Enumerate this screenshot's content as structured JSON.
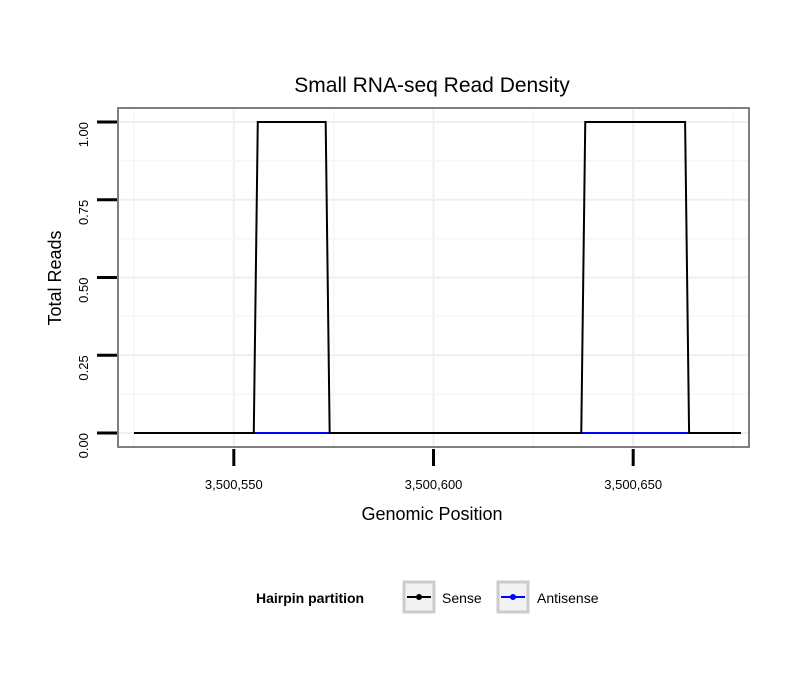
{
  "chart_data": {
    "type": "line",
    "title": "Small RNA-seq Read Density",
    "xlabel": "Genomic Position",
    "ylabel": "Total Reads",
    "xlim": [
      3500521,
      3500679
    ],
    "ylim": [
      -0.045,
      1.045
    ],
    "x_ticks": [
      3500550,
      3500600,
      3500650
    ],
    "x_tick_labels": [
      "3,500,550",
      "3,500,600",
      "3,500,650"
    ],
    "y_ticks": [
      0,
      0.25,
      0.5,
      0.75,
      1
    ],
    "y_tick_labels": [
      "0.00",
      "0.25",
      "0.50",
      "0.75",
      "1.00"
    ],
    "grid": true,
    "legend": {
      "title": "Hairpin partition",
      "position": "bottom",
      "entries": [
        "Sense",
        "Antisense"
      ]
    },
    "series": [
      {
        "name": "Antisense",
        "color": "#0000ff",
        "x": [
          3500555,
          3500574,
          3500637,
          3500664
        ],
        "y": [
          0,
          0,
          0,
          0
        ],
        "segments": [
          [
            0,
            1
          ],
          [
            2,
            3
          ]
        ]
      },
      {
        "name": "Sense",
        "color": "#000000",
        "x": [
          3500525,
          3500555,
          3500556,
          3500573,
          3500574,
          3500637,
          3500638,
          3500663,
          3500664,
          3500677
        ],
        "y": [
          0,
          0,
          1,
          1,
          0,
          0,
          1,
          1,
          0,
          0
        ]
      }
    ]
  }
}
